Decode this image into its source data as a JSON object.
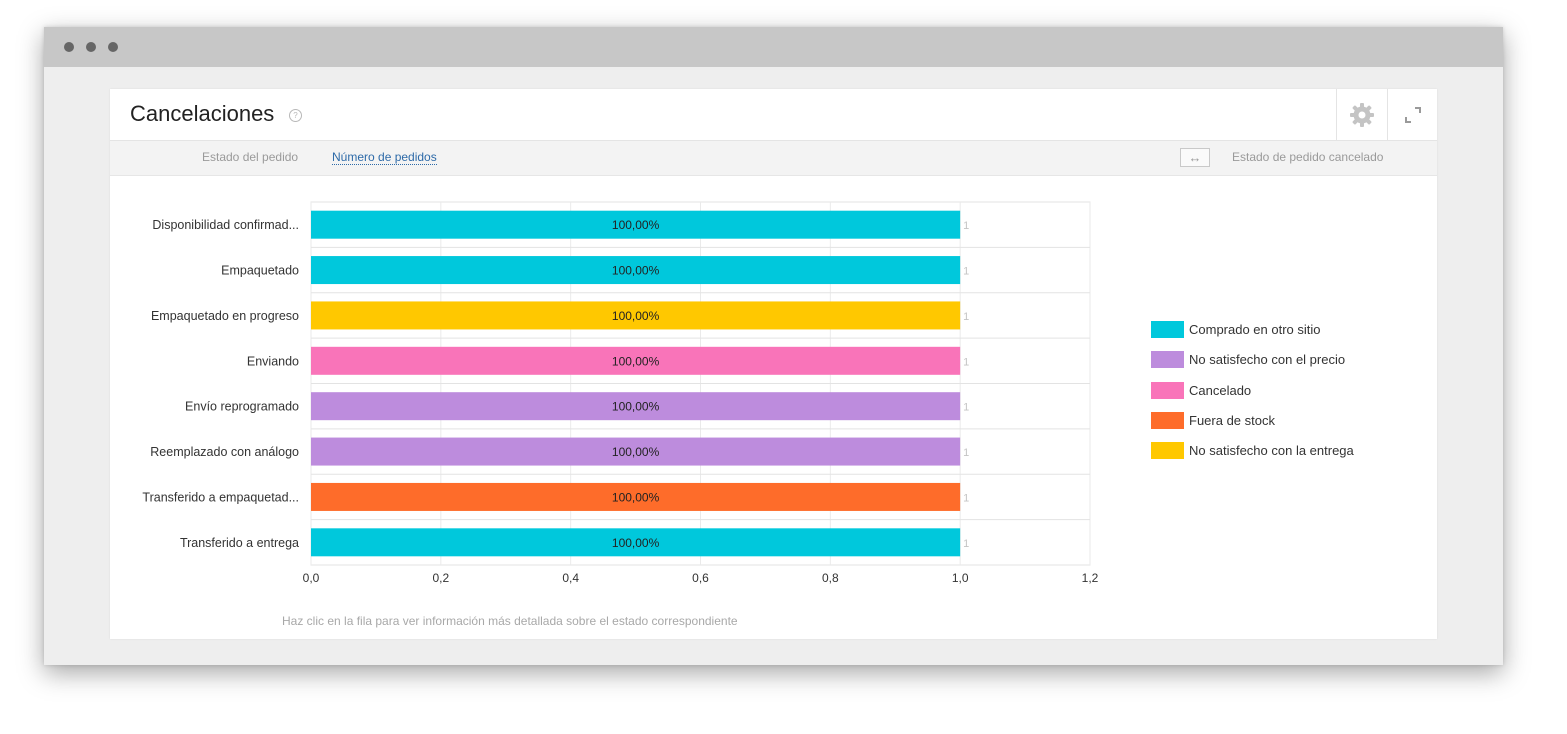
{
  "panel": {
    "title": "Cancelaciones",
    "help_glyph": "?"
  },
  "toolbar": {
    "tab_status": "Estado del pedido",
    "tab_orders": "Número de pedidos",
    "swap_glyph": "↔",
    "right_label": "Estado de pedido cancelado"
  },
  "footer_note": "Haz clic en la fila para ver información más detallada sobre el estado correspondiente",
  "colors": {
    "Comprado en otro sitio": "#00c8dc",
    "No satisfecho con el precio": "#bd8cdd",
    "Cancelado": "#f974b9",
    "Fuera de stock": "#fe6c2a",
    "No satisfecho con la entrega": "#ffc800"
  },
  "legend": [
    {
      "label": "Comprado en otro sitio",
      "color": "#00c8dc"
    },
    {
      "label": "No satisfecho con el precio",
      "color": "#bd8cdd"
    },
    {
      "label": "Cancelado",
      "color": "#f974b9"
    },
    {
      "label": "Fuera de stock",
      "color": "#fe6c2a"
    },
    {
      "label": "No satisfecho con la entrega",
      "color": "#ffc800"
    }
  ],
  "chart_data": {
    "type": "bar",
    "orientation": "horizontal",
    "categories": [
      "Disponibilidad confirmad...",
      "Empaquetado",
      "Empaquetado en progreso",
      "Enviando",
      "Envío reprogramado",
      "Reemplazado con análogo",
      "Transferido a empaquetad...",
      "Transferido a entrega"
    ],
    "values": [
      1,
      1,
      1,
      1,
      1,
      1,
      1,
      1
    ],
    "bar_labels": [
      "100,00%",
      "100,00%",
      "100,00%",
      "100,00%",
      "100,00%",
      "100,00%",
      "100,00%",
      "100,00%"
    ],
    "end_labels": [
      "1",
      "1",
      "1",
      "1",
      "1",
      "1",
      "1",
      "1"
    ],
    "bar_series": [
      "Comprado en otro sitio",
      "Comprado en otro sitio",
      "No satisfecho con la entrega",
      "Cancelado",
      "No satisfecho con el precio",
      "No satisfecho con el precio",
      "Fuera de stock",
      "Comprado en otro sitio"
    ],
    "xlim": [
      0,
      1.2
    ],
    "xticks": [
      0,
      0.2,
      0.4,
      0.6,
      0.8,
      1.0,
      1.2
    ],
    "xtick_labels": [
      "0,0",
      "0,2",
      "0,4",
      "0,6",
      "0,8",
      "1,0",
      "1,2"
    ],
    "grid": true,
    "legend_position": "right"
  }
}
